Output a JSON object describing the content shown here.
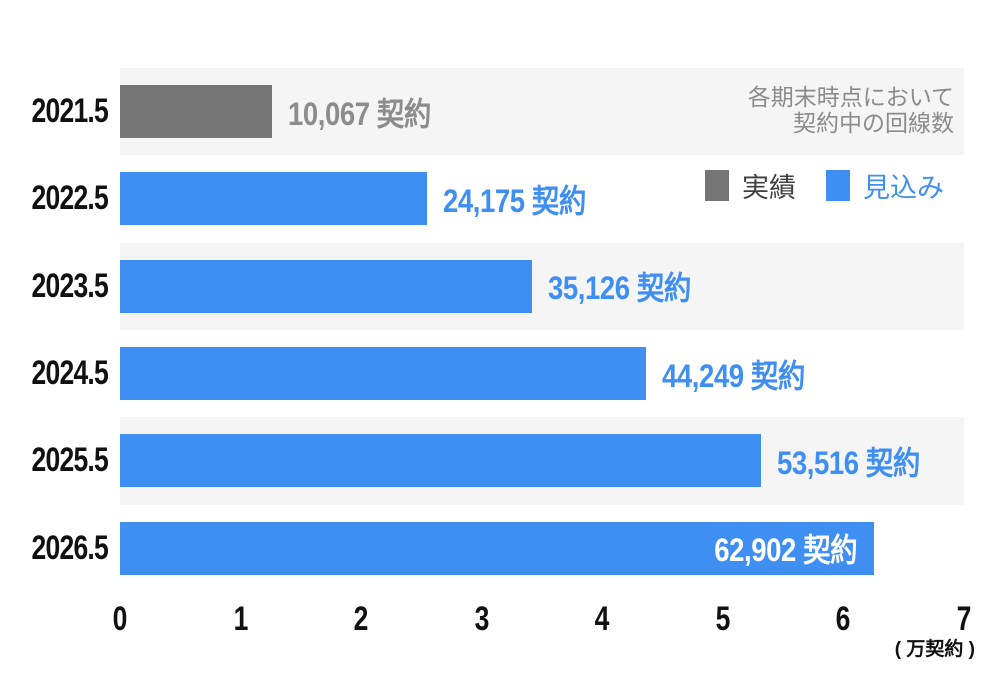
{
  "annotation": {
    "line1": "各期末時点において",
    "line2": "契約中の回線数"
  },
  "legend": {
    "actual_label": "実績",
    "forecast_label": "見込み"
  },
  "chart_data": {
    "type": "bar",
    "orientation": "horizontal",
    "title": "",
    "categories": [
      "2021.5",
      "2022.5",
      "2023.5",
      "2024.5",
      "2025.5",
      "2026.5"
    ],
    "values": [
      10067,
      24175,
      35126,
      44249,
      53516,
      62902
    ],
    "value_labels": [
      "10,067 契約",
      "24,175 契約",
      "35,126 契約",
      "44,249 契約",
      "53,516 契約",
      "62,902 契約"
    ],
    "series": [
      {
        "name": "実績",
        "color": "#757575",
        "rows": [
          0
        ]
      },
      {
        "name": "見込み",
        "color": "#3F8EF2",
        "rows": [
          1,
          2,
          3,
          4,
          5
        ]
      }
    ],
    "x_ticks": [
      "0",
      "1",
      "2",
      "3",
      "4",
      "5",
      "6",
      "7"
    ],
    "xlim": [
      0,
      7
    ],
    "x_unit": "( 万契約 )",
    "x_unit_meaning": "10,000 contracts",
    "grid": false,
    "legend_position": "top-right",
    "row_stripe_rows": [
      0,
      2,
      4
    ],
    "bar_widths_pct": [
      18.0,
      36.4,
      48.8,
      62.3,
      76.0,
      89.3
    ],
    "colors": {
      "actual_bar": "#757575",
      "forecast_bar": "#3F8EF2",
      "row_stripe": "#F5F5F6",
      "value_label_actual": "#8C8C8C",
      "value_label_forecast": "#3F8EF2",
      "value_label_inside": "#FFFFFF",
      "annotation_text": "#8B8B8B",
      "axis_text": "#111111"
    }
  }
}
